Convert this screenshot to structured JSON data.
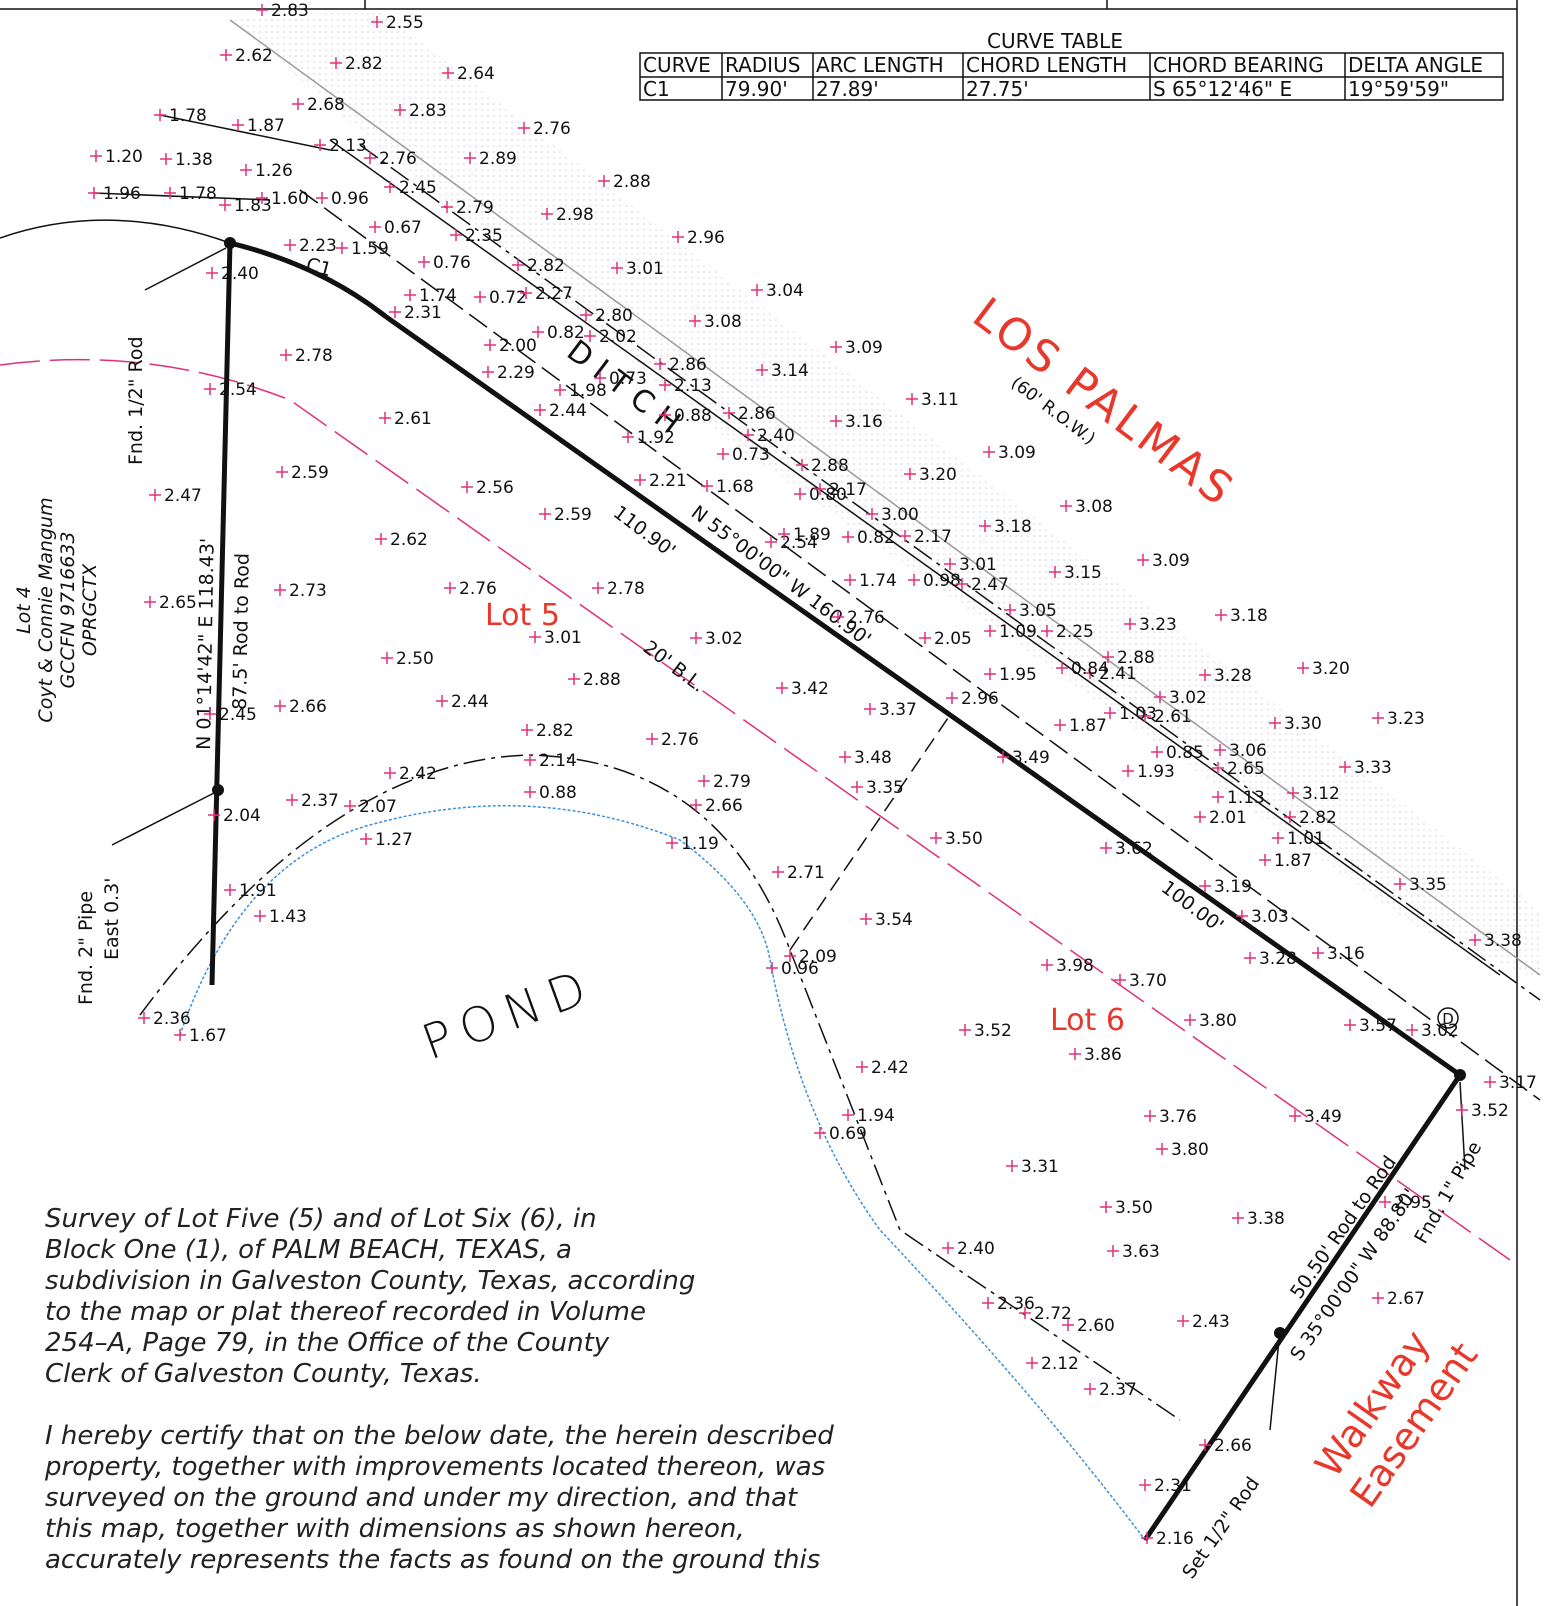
{
  "curve_table": {
    "title": "CURVE TABLE",
    "headers": [
      "CURVE",
      "RADIUS",
      "ARC LENGTH",
      "CHORD LENGTH",
      "CHORD BEARING",
      "DELTA ANGLE"
    ],
    "rows": [
      [
        "C1",
        "79.90'",
        "27.89'",
        "27.75'",
        "S 65°12'46\" E",
        "19°59'59\""
      ]
    ]
  },
  "labels": {
    "street": "LOS PALMAS",
    "row": "(60' R.O.W.)",
    "lot5": "Lot 5",
    "lot6": "Lot 6",
    "building_line": "20' B.L.",
    "ditch": "D I T C H",
    "pond": "POND",
    "curve": "C1",
    "dist_1": "110.90'",
    "bearing_ne": "N 55°00'00\" W 160.90'",
    "dist_2": "100.00'",
    "bearing_w": "N 01°14'42\" E  118.43'",
    "rod_w": "87.5' Rod to Rod",
    "fnd_rod": "Fnd. 1/2\" Rod",
    "fnd_pipe_1": "Fnd. 2\" Pipe",
    "fnd_pipe_2": "East 0.3'",
    "lot4": [
      "Lot 4",
      "Coyt & Connie Mangum",
      "GCCFN 9716633",
      "OPRGCTX"
    ],
    "rod_s": "50.50' Rod to Rod",
    "bearing_s": "S 35°00'00\" W 88.80'",
    "fnd_pipe_e": "Fnd. 1\" Pipe",
    "set_rod": "Set 1/2\" Rod",
    "walkway": [
      "Walkway",
      "Easement"
    ],
    "marker": "D"
  },
  "elevations": [
    "2.83",
    "2.55",
    "2.62",
    "2.82",
    "2.64",
    "1.78",
    "1.87",
    "2.68",
    "2.83",
    "2.76",
    "1.20",
    "1.38",
    "1.26",
    "2.13",
    "2.76",
    "2.89",
    "2.88",
    "1.96",
    "1.78",
    "1.83",
    "1.60",
    "0.96",
    "2.45",
    "2.79",
    "2.98",
    "0.67",
    "2.35",
    "2.96",
    "2.23",
    "1.59",
    "0.76",
    "2.82",
    "3.01",
    "2.40",
    "1.74",
    "0.72",
    "2.27",
    "3.04",
    "2.31",
    "2.80",
    "3.08",
    "0.82",
    "2.02",
    "2.00",
    "3.09",
    "2.78",
    "2.29",
    "0.73",
    "2.86",
    "2.13",
    "3.14",
    "1.98",
    "2.54",
    "3.11",
    "2.44",
    "0.88",
    "2.86",
    "2.61",
    "3.16",
    "1.92",
    "2.40",
    "0.73",
    "3.09",
    "2.88",
    "3.20",
    "2.59",
    "2.21",
    "1.68",
    "0.80",
    "2.17",
    "2.56",
    "2.47",
    "3.08",
    "2.59",
    "3.00",
    "3.18",
    "2.54",
    "1.89",
    "0.82",
    "2.17",
    "2.62",
    "3.09",
    "3.01",
    "3.15",
    "1.74",
    "0.98",
    "2.47",
    "2.73",
    "2.76",
    "2.78",
    "2.65",
    "3.05",
    "3.18",
    "2.76",
    "3.23",
    "1.09",
    "2.25",
    "2.05",
    "3.01",
    "3.02",
    "2.88",
    "2.41",
    "0.84",
    "1.95",
    "3.28",
    "3.20",
    "2.50",
    "2.88",
    "2.96",
    "3.37",
    "3.42",
    "2.44",
    "2.66",
    "2.45",
    "3.02",
    "2.61",
    "1.03",
    "1.87",
    "3.30",
    "3.23",
    "2.82",
    "2.76",
    "3.49",
    "3.48",
    "0.85",
    "3.06",
    "2.65",
    "1.93",
    "3.33",
    "2.42",
    "2.14",
    "2.79",
    "3.35",
    "1.13",
    "3.12",
    "2.82",
    "0.88",
    "2.37",
    "2.07",
    "2.66",
    "2.01",
    "2.04",
    "1.01",
    "1.27",
    "1.19",
    "3.50",
    "3.62",
    "1.87",
    "2.71",
    "1.91",
    "3.19",
    "3.35",
    "3.03",
    "1.43",
    "3.54",
    "3.38",
    "3.16",
    "2.09",
    "0.96",
    "3.98",
    "3.28",
    "3.70",
    "2.36",
    "1.67",
    "3.80",
    "3.57",
    "3.02",
    "3.52",
    "3.86",
    "3.17",
    "3.52",
    "2.42",
    "1.94",
    "0.69",
    "3.49",
    "3.76",
    "3.80",
    "3.31",
    "3.50",
    "3.38",
    "2.95",
    "2.40",
    "3.63",
    "2.36",
    "2.72",
    "2.60",
    "2.67",
    "2.43",
    "2.12",
    "2.37",
    "2.66",
    "2.31",
    "2.16"
  ],
  "notes": {
    "paragraph_1": [
      "Survey of Lot Five (5) and of Lot Six (6), in",
      "Block One (1), of PALM BEACH, TEXAS, a",
      "subdivision in Galveston County, Texas, according",
      "to the map or plat thereof recorded in Volume",
      "254–A, Page 79, in the Office of the County",
      "Clerk of Galveston County, Texas."
    ],
    "paragraph_2": [
      "I hereby certify that on the below date, the herein described",
      "property, together with improvements located thereon, was",
      "surveyed on the ground and under my direction, and that",
      "this map, together with dimensions as shown hereon,",
      "accurately represents the facts as found on the ground this"
    ]
  }
}
